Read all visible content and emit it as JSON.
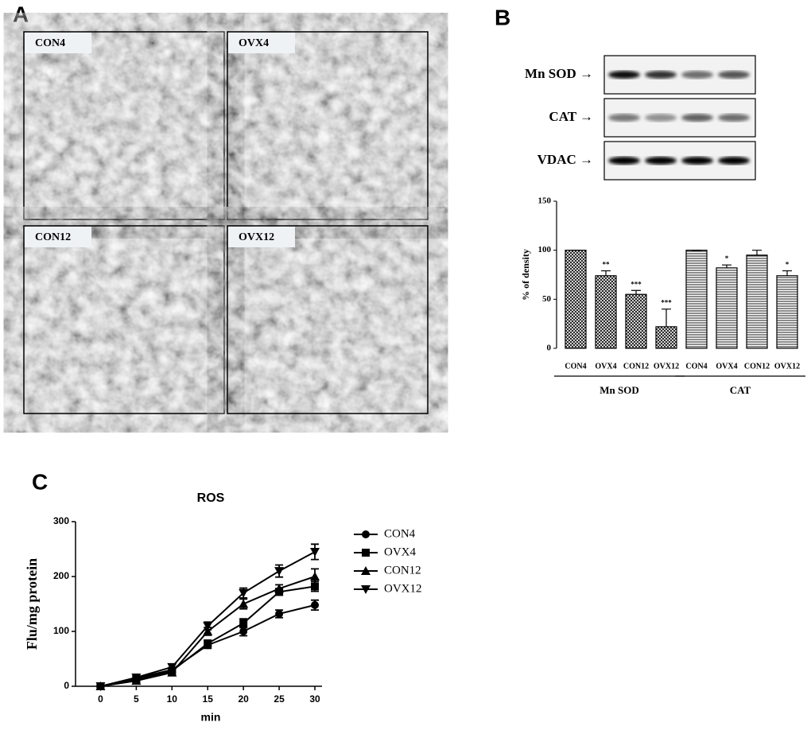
{
  "panel_labels": [
    "A",
    "B",
    "C"
  ],
  "micrographs": [
    "CON4",
    "OVX4",
    "CON12",
    "OVX12"
  ],
  "blot_labels": [
    "Mn SOD →",
    "CAT →",
    "VDAC →"
  ],
  "chart_data": [
    {
      "type": "bar",
      "ylabel": "% of density",
      "ylim": [
        0,
        150
      ],
      "yticks": [
        0,
        50,
        100,
        150
      ],
      "groups": [
        {
          "name": "Mn SOD",
          "pattern": "crosshatch",
          "categories": [
            "CON4",
            "OVX4",
            "CON12",
            "OVX12"
          ],
          "values": [
            100,
            74,
            55,
            22
          ],
          "errors": [
            0,
            5,
            4,
            18
          ],
          "annotations": [
            null,
            "**",
            "***",
            "***"
          ]
        },
        {
          "name": "CAT",
          "pattern": "hlines",
          "categories": [
            "CON4",
            "OVX4",
            "CON12",
            "OVX12"
          ],
          "values": [
            100,
            82,
            95,
            74
          ],
          "errors": [
            0,
            3,
            5,
            5
          ],
          "annotations": [
            null,
            "*",
            null,
            "*"
          ]
        }
      ]
    },
    {
      "type": "line",
      "title": "ROS",
      "xlabel": "min",
      "ylabel": "Flu/mg protein",
      "x": [
        0,
        5,
        10,
        15,
        20,
        25,
        30
      ],
      "xlim": [
        -3.5,
        31
      ],
      "xticks": [
        0,
        5,
        10,
        15,
        20,
        25,
        30
      ],
      "ylim": [
        0,
        300
      ],
      "yticks": [
        0,
        100,
        200,
        300
      ],
      "series": [
        {
          "name": "CON4",
          "marker": "circle",
          "color": "#000000",
          "values": [
            0,
            15,
            30,
            75,
            100,
            132,
            148
          ],
          "errors": [
            2,
            3,
            4,
            6,
            8,
            7,
            9
          ]
        },
        {
          "name": "OVX4",
          "marker": "square",
          "color": "#000000",
          "values": [
            0,
            12,
            28,
            78,
            115,
            172,
            182
          ],
          "errors": [
            2,
            3,
            4,
            6,
            8,
            6,
            9
          ]
        },
        {
          "name": "CON12",
          "marker": "triangle-up",
          "color": "#000000",
          "values": [
            0,
            10,
            25,
            100,
            150,
            178,
            200
          ],
          "errors": [
            2,
            3,
            4,
            7,
            9,
            7,
            14
          ]
        },
        {
          "name": "OVX12",
          "marker": "triangle-down",
          "color": "#000000",
          "values": [
            0,
            16,
            35,
            110,
            170,
            210,
            245
          ],
          "errors": [
            2,
            3,
            5,
            7,
            9,
            11,
            14
          ]
        }
      ]
    }
  ]
}
